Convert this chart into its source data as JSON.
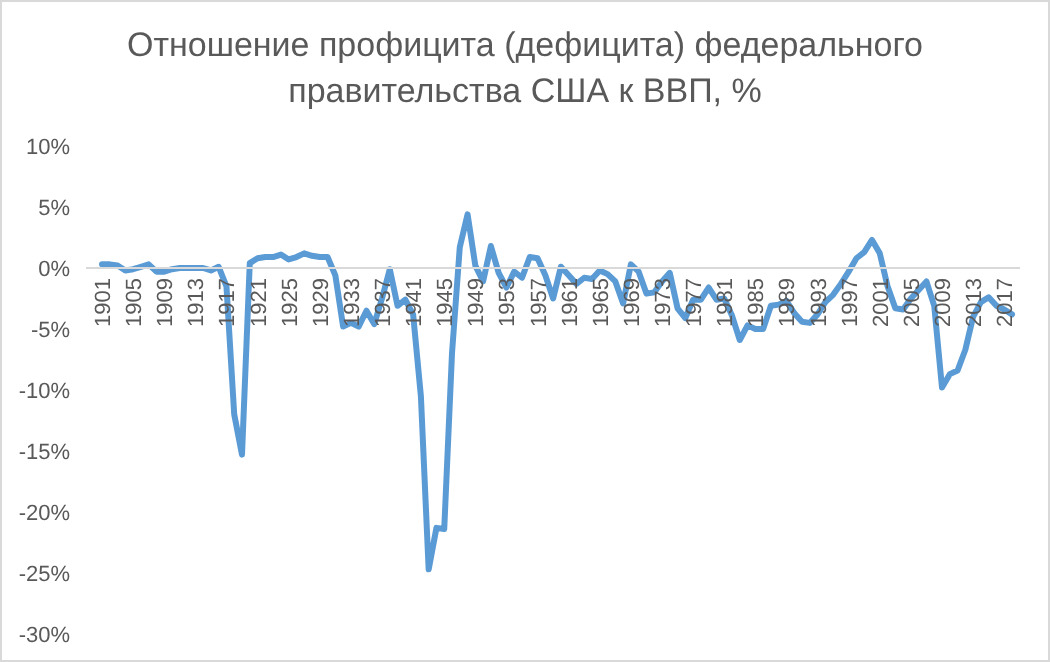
{
  "chart_data": {
    "type": "line",
    "title": "Отношение профицита (дефицита) федерального правительства США к ВВП, %",
    "categories": [
      "1901",
      null,
      null,
      null,
      "1905",
      null,
      null,
      null,
      "1909",
      null,
      null,
      null,
      "1913",
      null,
      null,
      null,
      "1917",
      null,
      null,
      null,
      "1921",
      null,
      null,
      null,
      "1925",
      null,
      null,
      null,
      "1929",
      null,
      null,
      null,
      "1933",
      null,
      null,
      null,
      "1937",
      null,
      null,
      null,
      "1941",
      null,
      null,
      null,
      "1945",
      null,
      null,
      null,
      "1949",
      null,
      null,
      null,
      "1953",
      null,
      null,
      null,
      "1957",
      null,
      null,
      null,
      "1961",
      null,
      null,
      null,
      "1965",
      null,
      null,
      null,
      "1969",
      null,
      null,
      null,
      "1973",
      null,
      null,
      null,
      "1977",
      null,
      null,
      null,
      "1981",
      null,
      null,
      null,
      "1985",
      null,
      null,
      null,
      "1989",
      null,
      null,
      null,
      "1993",
      null,
      null,
      null,
      "1997",
      null,
      null,
      null,
      "2001",
      null,
      null,
      null,
      "2005",
      null,
      null,
      null,
      "2009",
      null,
      null,
      null,
      "2013",
      null,
      null,
      null,
      "2017",
      null
    ],
    "series": [
      {
        "color": "#5b9bd5",
        "values": [
          0.3,
          0.3,
          0.2,
          -0.2,
          -0.1,
          0.1,
          0.3,
          -0.3,
          -0.3,
          -0.1,
          0,
          0,
          0,
          0,
          -0.2,
          0.1,
          -1.5,
          -12,
          -15.3,
          0.4,
          0.8,
          0.9,
          0.9,
          1.1,
          0.7,
          0.9,
          1.2,
          1,
          0.9,
          0.9,
          -0.6,
          -4.8,
          -4.5,
          -4.8,
          -3.5,
          -4.6,
          -2.5,
          -0.1,
          -3.1,
          -2.6,
          -3.8,
          -10.5,
          -24.7,
          -21.3,
          -21.4,
          -7,
          1.7,
          4.4,
          0.2,
          -1.1,
          1.8,
          -0.4,
          -1.6,
          -0.3,
          -0.8,
          0.9,
          0.8,
          -0.6,
          -2.5,
          0.1,
          -0.6,
          -1.3,
          -0.8,
          -0.9,
          -0.2,
          -0.5,
          -1.1,
          -2.9,
          0.3,
          -0.3,
          -2.1,
          -2,
          -1.1,
          -0.4,
          -3.3,
          -4.1,
          -2.6,
          -2.6,
          -1.6,
          -2.6,
          -2.5,
          -3.9,
          -5.9,
          -4.7,
          -5,
          -5,
          -3.1,
          -3,
          -2.7,
          -3.7,
          -4.4,
          -4.5,
          -3.8,
          -2.8,
          -2.2,
          -1.3,
          -0.3,
          0.8,
          1.3,
          2.3,
          1.2,
          -1.5,
          -3.3,
          -3.4,
          -2.5,
          -1.8,
          -1.1,
          -3.1,
          -9.8,
          -8.7,
          -8.4,
          -6.7,
          -4,
          -2.8,
          -2.4,
          -3.1,
          -3.4,
          -3.8
        ]
      }
    ],
    "ylim": [
      -30,
      10
    ],
    "yticks": [
      {
        "value": -30,
        "label": "-30%"
      },
      {
        "value": -25,
        "label": "-25%"
      },
      {
        "value": -20,
        "label": "-20%"
      },
      {
        "value": -15,
        "label": "-15%"
      },
      {
        "value": -10,
        "label": "-10%"
      },
      {
        "value": -5,
        "label": "-5%"
      },
      {
        "value": 0,
        "label": "0%"
      },
      {
        "value": 5,
        "label": "5%"
      },
      {
        "value": 10,
        "label": "10%"
      }
    ],
    "grid": false,
    "legend": false,
    "marker": "none",
    "line_style": "solid"
  }
}
